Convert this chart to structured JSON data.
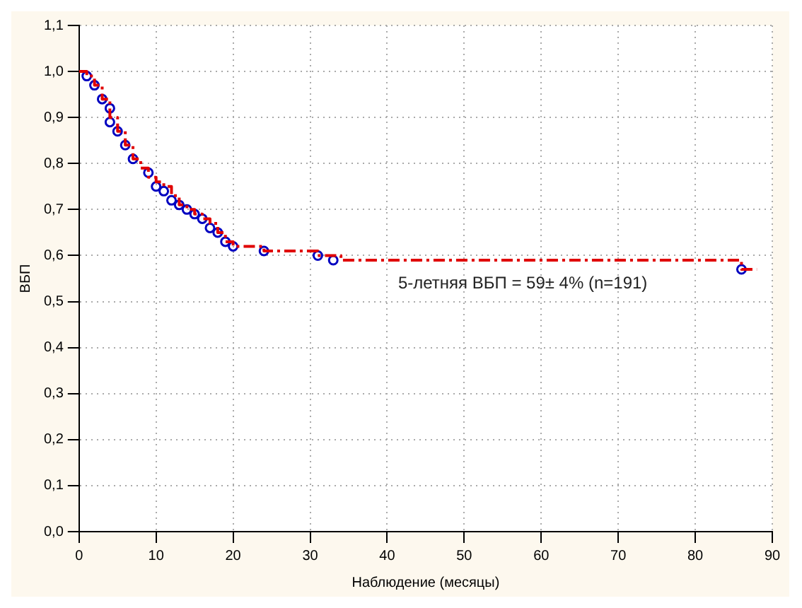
{
  "chart_data": {
    "type": "step",
    "xlabel": "Наблюдение (месяцы)",
    "ylabel": "ВБП",
    "annotations": [
      "5-летняя ВБП = 59± 4% (n=191)"
    ],
    "xlim": [
      0,
      90
    ],
    "xticks": [
      0,
      10,
      20,
      30,
      40,
      50,
      60,
      70,
      80,
      90
    ],
    "ylim": [
      0,
      1.1
    ],
    "yticks": [
      {
        "value": 0,
        "label": "0,0"
      },
      {
        "value": 0.1,
        "label": "0,1"
      },
      {
        "value": 0.2,
        "label": "0,2"
      },
      {
        "value": 0.3,
        "label": "0,3"
      },
      {
        "value": 0.4,
        "label": "0,4"
      },
      {
        "value": 0.5,
        "label": "0,5"
      },
      {
        "value": 0.6,
        "label": "0,6"
      },
      {
        "value": 0.7,
        "label": "0,7"
      },
      {
        "value": 0.8,
        "label": "0,8"
      },
      {
        "value": 0.9,
        "label": "0,9"
      },
      {
        "value": 1,
        "label": "1,0"
      },
      {
        "value": 1.1,
        "label": "1,1"
      }
    ],
    "grid": true,
    "legend": false,
    "series": [
      {
        "color": "#e00000",
        "line_style": "dashed",
        "marker": "none",
        "x": [
          0,
          1,
          2,
          3,
          4,
          5,
          6,
          7,
          8,
          9,
          10,
          11,
          12,
          13,
          14,
          15,
          16,
          17,
          18,
          19,
          20,
          22,
          24,
          31,
          34,
          86,
          88
        ],
        "values": [
          1.0,
          0.99,
          0.97,
          0.94,
          0.9,
          0.87,
          0.84,
          0.81,
          0.79,
          0.77,
          0.76,
          0.75,
          0.73,
          0.71,
          0.7,
          0.69,
          0.68,
          0.67,
          0.65,
          0.63,
          0.62,
          0.62,
          0.61,
          0.6,
          0.59,
          0.57,
          0.57
        ]
      },
      {
        "type": "scatter",
        "color": "#0000c0",
        "marker": "circle",
        "x": [
          1,
          2,
          3,
          4,
          4,
          5,
          6,
          7,
          9,
          10,
          11,
          12,
          13,
          14,
          15,
          16,
          17,
          18,
          19,
          20,
          24,
          31,
          33,
          86
        ],
        "values": [
          0.99,
          0.97,
          0.94,
          0.92,
          0.89,
          0.87,
          0.84,
          0.81,
          0.78,
          0.75,
          0.74,
          0.72,
          0.71,
          0.7,
          0.69,
          0.68,
          0.66,
          0.65,
          0.63,
          0.62,
          0.61,
          0.6,
          0.59,
          0.57
        ]
      }
    ]
  }
}
